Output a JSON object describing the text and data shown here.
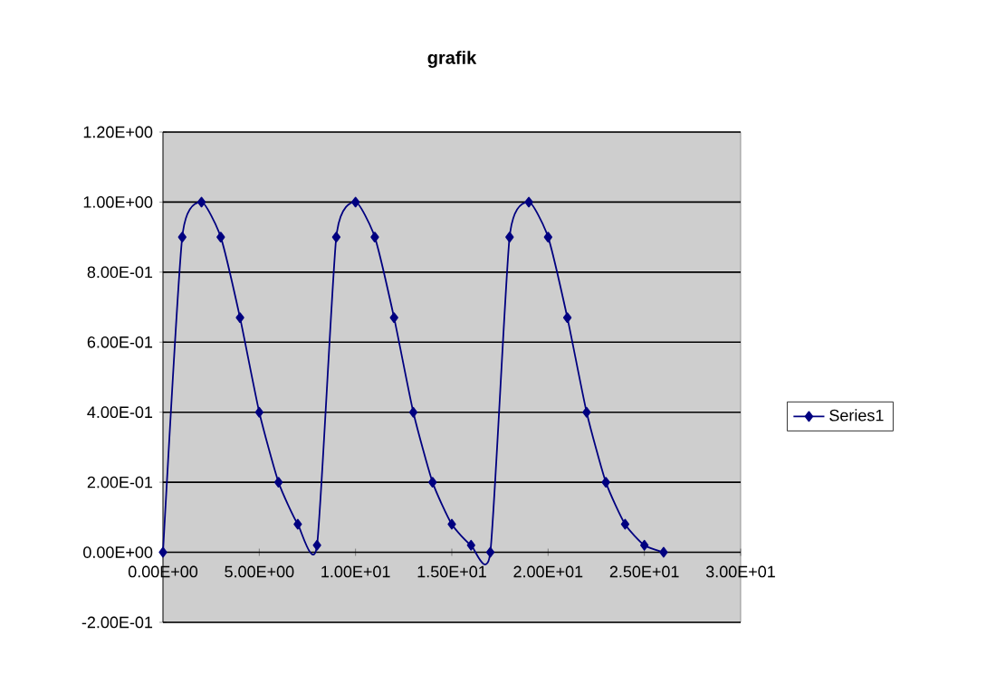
{
  "chart_data": {
    "type": "line",
    "title": "grafik",
    "x": [
      0,
      1,
      2,
      3,
      4,
      5,
      6,
      7,
      8,
      9,
      10,
      11,
      12,
      13,
      14,
      15,
      16,
      17,
      18,
      19,
      20,
      21,
      22,
      23,
      24,
      25,
      26
    ],
    "series": [
      {
        "name": "Series1",
        "color": "#000080",
        "values": [
          0,
          0.9,
          1.0,
          0.9,
          0.67,
          0.4,
          0.2,
          0.08,
          0.02,
          0.9,
          1.0,
          0.9,
          0.67,
          0.4,
          0.2,
          0.08,
          0.02,
          0,
          0.9,
          1.0,
          0.9,
          0.67,
          0.4,
          0.2,
          0.08,
          0.02,
          0
        ]
      }
    ],
    "xlim": [
      0,
      30
    ],
    "ylim": [
      -0.2,
      1.2
    ],
    "xticks": [
      {
        "value": 0,
        "label": "0.00E+00"
      },
      {
        "value": 5,
        "label": "5.00E+00"
      },
      {
        "value": 10,
        "label": "1.00E+01"
      },
      {
        "value": 15,
        "label": "1.50E+01"
      },
      {
        "value": 20,
        "label": "2.00E+01"
      },
      {
        "value": 25,
        "label": "2.50E+01"
      },
      {
        "value": 30,
        "label": "3.00E+01"
      }
    ],
    "yticks": [
      {
        "value": -0.2,
        "label": "-2.00E-01"
      },
      {
        "value": 0,
        "label": "0.00E+00"
      },
      {
        "value": 0.2,
        "label": "2.00E-01"
      },
      {
        "value": 0.4,
        "label": "4.00E-01"
      },
      {
        "value": 0.6,
        "label": "6.00E-01"
      },
      {
        "value": 0.8,
        "label": "8.00E-01"
      },
      {
        "value": 1.0,
        "label": "1.00E+00"
      },
      {
        "value": 1.2,
        "label": "1.20E+00"
      }
    ],
    "grid": "y",
    "legend": "right",
    "marker": "diamond",
    "line_style": "solid"
  }
}
